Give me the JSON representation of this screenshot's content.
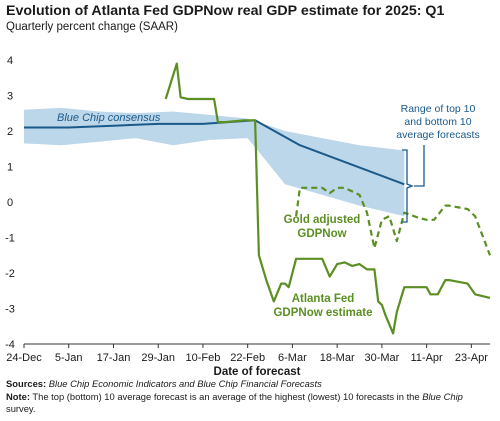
{
  "chart_data": {
    "type": "line",
    "title": "Evolution of Atlanta Fed GDPNow real GDP estimate for 2025: Q1",
    "subtitle": "Quarterly percent change (SAAR)",
    "xlabel": "Date of forecast",
    "ylabel": "",
    "ylim": [
      -4,
      4
    ],
    "yticks": [
      "4",
      "3",
      "2",
      "1",
      "0",
      "-1",
      "-2",
      "-3",
      "-4"
    ],
    "xlim": [
      0,
      125
    ],
    "xticks": [
      {
        "x": 0,
        "label": "24-Dec"
      },
      {
        "x": 12,
        "label": "5-Jan"
      },
      {
        "x": 24,
        "label": "17-Jan"
      },
      {
        "x": 36,
        "label": "29-Jan"
      },
      {
        "x": 48,
        "label": "10-Feb"
      },
      {
        "x": 60,
        "label": "22-Feb"
      },
      {
        "x": 72,
        "label": "6-Mar"
      },
      {
        "x": 84,
        "label": "18-Mar"
      },
      {
        "x": 96,
        "label": "30-Mar"
      },
      {
        "x": 108,
        "label": "11-Apr"
      },
      {
        "x": 120,
        "label": "23-Apr"
      }
    ],
    "colors": {
      "blue": "#1a5a8a",
      "band": "#bcd6ea",
      "green": "#5b8f22",
      "axis": "#333333"
    },
    "band": {
      "name": "Range of top 10 and bottom 10 average forecasts",
      "x": [
        0,
        10,
        20,
        30,
        40,
        50,
        60,
        70,
        80,
        90,
        102
      ],
      "upper": [
        2.6,
        2.65,
        2.55,
        2.5,
        2.55,
        2.45,
        2.35,
        2.0,
        1.8,
        1.6,
        1.45
      ],
      "lower": [
        1.65,
        1.6,
        1.7,
        1.8,
        1.6,
        1.75,
        1.8,
        0.5,
        0.2,
        -0.1,
        -0.4
      ]
    },
    "series": [
      {
        "name": "Blue Chip consensus",
        "style": "solid",
        "color": "#1a5a8a",
        "x": [
          0,
          12,
          24,
          36,
          48,
          62,
          74,
          102
        ],
        "y": [
          2.1,
          2.1,
          2.15,
          2.2,
          2.2,
          2.3,
          1.6,
          0.5
        ]
      },
      {
        "name": "Atlanta Fed GDPNow estimate",
        "style": "solid",
        "color": "#5b8f22",
        "x": [
          38,
          41,
          42,
          44,
          48,
          51,
          52,
          54,
          59,
          62,
          63,
          65,
          67,
          69,
          70,
          71,
          73,
          80,
          82,
          84,
          86,
          88,
          90,
          92,
          94,
          95,
          96,
          97,
          99,
          100,
          102,
          108,
          109,
          111,
          113,
          114,
          119,
          121,
          125
        ],
        "y": [
          2.9,
          3.9,
          2.95,
          2.9,
          2.9,
          2.9,
          2.25,
          2.25,
          2.3,
          2.3,
          -1.5,
          -2.2,
          -2.8,
          -2.3,
          -2.3,
          -2.4,
          -1.6,
          -1.6,
          -2.1,
          -1.75,
          -1.7,
          -1.8,
          -1.75,
          -1.9,
          -1.9,
          -2.8,
          -2.9,
          -3.2,
          -3.7,
          -3.1,
          -2.4,
          -2.4,
          -2.6,
          -2.6,
          -2.2,
          -2.2,
          -2.3,
          -2.6,
          -2.7
        ]
      },
      {
        "name": "Gold adjusted GDPNow",
        "style": "dashed",
        "color": "#5b8f22",
        "x": [
          73,
          74,
          80,
          82,
          84,
          86,
          90,
          92,
          94,
          96,
          98,
          100,
          102,
          106,
          108,
          110,
          113,
          114,
          119,
          121,
          125
        ],
        "y": [
          -0.4,
          0.4,
          0.4,
          0.25,
          0.4,
          0.4,
          0.2,
          -0.3,
          -1.3,
          -0.5,
          -0.4,
          -1.1,
          -0.3,
          -0.45,
          -0.5,
          -0.5,
          -0.1,
          -0.1,
          -0.2,
          -0.4,
          -1.5
        ]
      }
    ],
    "annotations": {
      "blue_chip": "Blue Chip consensus",
      "range_line1": "Range of top 10",
      "range_line2": "and bottom 10",
      "range_line3": "average forecasts",
      "gold_line1": "Gold adjusted",
      "gold_line2": "GDPNow",
      "atl_line1": "Atlanta Fed",
      "atl_line2": "GDPNow estimate"
    }
  },
  "notes": {
    "sources_label": "Sources:",
    "sources_text": "Blue Chip Economic Indicators and Blue Chip Financial Forecasts",
    "note_label": "Note:",
    "note_text_1": "The top (bottom) 10 average forecast is an average of the highest (lowest) 10 forecasts in the",
    "note_text_italic": "Blue Chip",
    "note_text_2": "survey."
  }
}
